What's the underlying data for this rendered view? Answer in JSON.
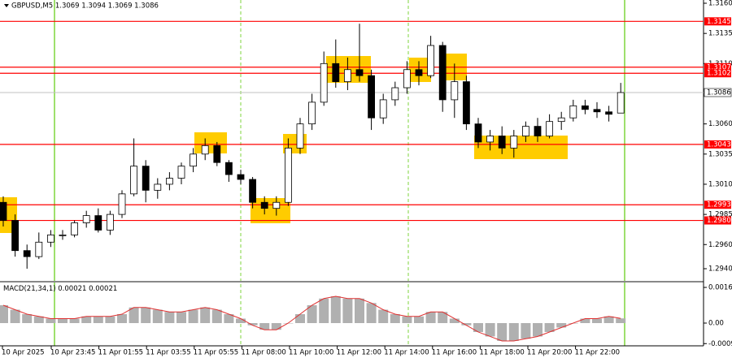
{
  "chart_data": [
    {
      "type": "candlestick",
      "title": "GBPUSD,M5  1.3069 1.3094 1.3069 1.3086",
      "ylim": [
        1.29299,
        1.31627
      ],
      "yticks": [
        {
          "value": 1.316,
          "label": "1.3160"
        },
        1.3135,
        {
          "value": 1.311,
          "label": "1.3110"
        },
        {
          "value": 1.306,
          "label": "1.3060"
        },
        1.3035,
        {
          "value": 1.301,
          "label": "1.3010"
        },
        1.2985,
        {
          "value": 1.296,
          "label": "1.2960"
        },
        {
          "value": 1.294,
          "label": "1.2940"
        }
      ],
      "levels": [
        1.3145,
        1.3107,
        1.3102,
        1.3043,
        1.2993,
        {
          "value": 1.298,
          "label": "1.2980"
        }
      ],
      "level_color": "#ff0000",
      "current_price": 1.3086,
      "time_labels": [
        "10 Apr 2025",
        "10 Apr 23:45",
        "11 Apr 01:55",
        "11 Apr 03:55",
        "11 Apr 05:55",
        "11 Apr 08:00",
        "11 Apr 10:00",
        "11 Apr 12:00",
        "11 Apr 14:00",
        "11 Apr 16:00",
        "11 Apr 18:00",
        "11 Apr 20:00",
        "11 Apr 22:00"
      ],
      "open": [
        1.2995,
        1.298,
        1.2955,
        1.295,
        1.2962,
        1.2968,
        1.2968,
        1.2978,
        1.2984,
        1.2972,
        1.2985,
        1.3002,
        1.3025,
        1.3005,
        1.301,
        1.3015,
        1.3025,
        1.3035,
        1.3042,
        1.3028,
        1.3018,
        1.3014,
        1.2995,
        1.299,
        1.2995,
        1.304,
        1.306,
        1.3078,
        1.311,
        1.3095,
        1.3105,
        1.31,
        1.3065,
        1.308,
        1.309,
        1.3105,
        1.31,
        1.3125,
        1.308,
        1.3095,
        1.306,
        1.3045,
        1.305,
        1.304,
        1.305,
        1.3058,
        1.305,
        1.3062,
        1.3065,
        1.3075,
        1.3072,
        1.307,
        1.3069
      ],
      "high": [
        1.3,
        1.2985,
        1.296,
        1.297,
        1.2972,
        1.2972,
        1.298,
        1.2988,
        1.299,
        1.2988,
        1.3005,
        1.3048,
        1.303,
        1.3015,
        1.302,
        1.3028,
        1.304,
        1.3048,
        1.3045,
        1.303,
        1.3022,
        1.3016,
        1.3,
        1.3,
        1.3048,
        1.3065,
        1.3085,
        1.312,
        1.313,
        1.3115,
        1.3143,
        1.3105,
        1.3085,
        1.3095,
        1.3112,
        1.3112,
        1.3133,
        1.3128,
        1.311,
        1.31,
        1.3065,
        1.3055,
        1.3058,
        1.3055,
        1.3062,
        1.3065,
        1.3068,
        1.307,
        1.308,
        1.308,
        1.3078,
        1.3075,
        1.3094
      ],
      "low": [
        1.2975,
        1.295,
        1.294,
        1.2948,
        1.2958,
        1.2964,
        1.2966,
        1.2974,
        1.297,
        1.2968,
        1.2982,
        1.3,
        1.2995,
        1.2998,
        1.3005,
        1.301,
        1.302,
        1.303,
        1.3025,
        1.3012,
        1.301,
        1.299,
        1.2985,
        1.2984,
        1.2992,
        1.3035,
        1.3055,
        1.3075,
        1.309,
        1.3088,
        1.3095,
        1.3055,
        1.306,
        1.3075,
        1.3085,
        1.3092,
        1.3098,
        1.307,
        1.3065,
        1.3055,
        1.304,
        1.3038,
        1.3035,
        1.3032,
        1.3045,
        1.3045,
        1.3048,
        1.3055,
        1.3062,
        1.3068,
        1.3065,
        1.3062,
        1.3069
      ],
      "close": [
        1.298,
        1.2955,
        1.295,
        1.2962,
        1.2968,
        1.2968,
        1.2978,
        1.2984,
        1.2972,
        1.2985,
        1.3002,
        1.3025,
        1.3005,
        1.301,
        1.3015,
        1.3025,
        1.3035,
        1.3042,
        1.3028,
        1.3018,
        1.3014,
        1.2995,
        1.299,
        1.2995,
        1.304,
        1.306,
        1.3078,
        1.311,
        1.3095,
        1.3105,
        1.31,
        1.3065,
        1.308,
        1.309,
        1.3105,
        1.31,
        1.3125,
        1.308,
        1.3095,
        1.306,
        1.3045,
        1.305,
        1.304,
        1.305,
        1.3058,
        1.305,
        1.3062,
        1.3065,
        1.3075,
        1.3072,
        1.307,
        1.3068,
        1.3086
      ],
      "up_color": "#ffffff",
      "down_color": "#000000"
    },
    {
      "type": "macd",
      "title": "MACD(21,34,1)",
      "macd_value": 0.00021,
      "signal_value": 0.00021,
      "ylim": [
        -0.00102,
        0.00182
      ],
      "yticks": [
        0.0016,
        {
          "value": 0,
          "label": "0.00"
        },
        -0.00092
      ],
      "hist_color": "#b0b0b0",
      "signal_color": "#e03030",
      "values": [
        0.0008,
        0.0006,
        0.0004,
        0.0003,
        0.0002,
        0.0002,
        0.0002,
        0.0003,
        0.0003,
        0.0003,
        0.0004,
        0.0007,
        0.0007,
        0.0006,
        0.0005,
        0.0005,
        0.0006,
        0.0007,
        0.0006,
        0.0004,
        0.0002,
        -0.0001,
        -0.0003,
        -0.0003,
        0,
        0.0004,
        0.0008,
        0.0011,
        0.0012,
        0.0011,
        0.0011,
        0.0009,
        0.0006,
        0.0004,
        0.0003,
        0.0003,
        0.0005,
        0.0005,
        0.0002,
        -0.0001,
        -0.0004,
        -0.0006,
        -0.0008,
        -0.0008,
        -0.0007,
        -0.0006,
        -0.0004,
        -0.0002,
        0,
        0.0002,
        0.0002,
        0.0003,
        0.00021
      ]
    }
  ]
}
